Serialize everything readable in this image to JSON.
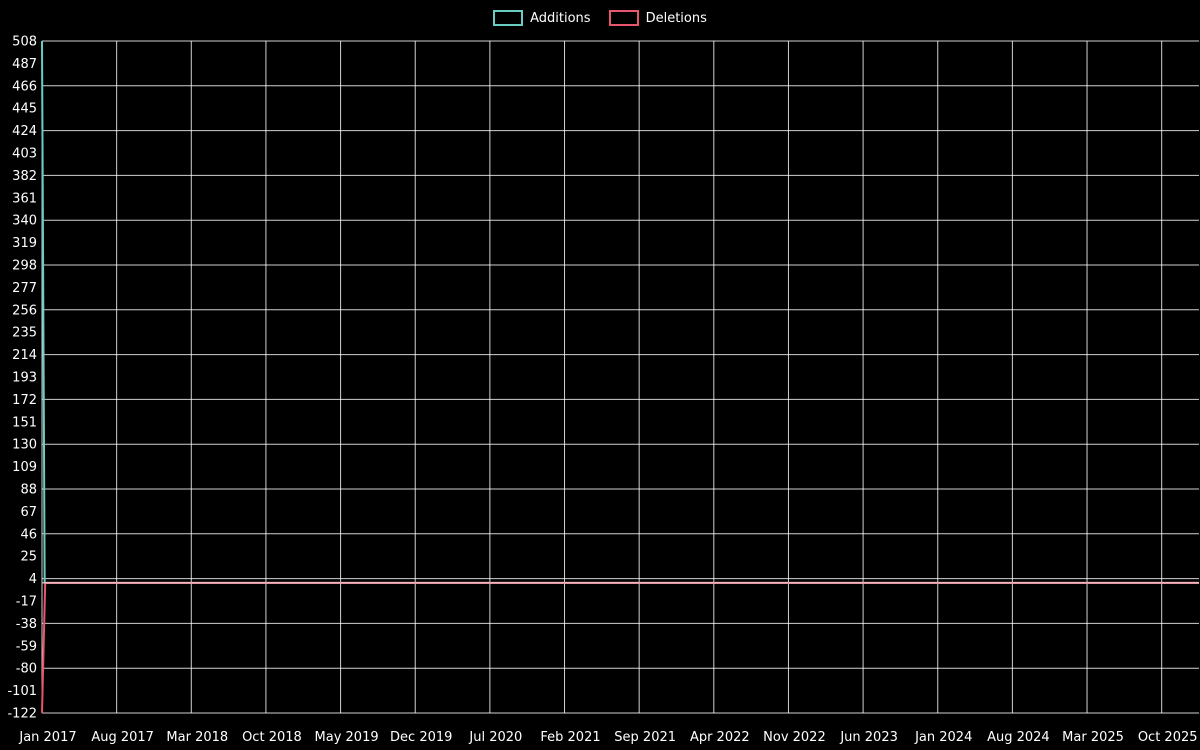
{
  "chart_data": {
    "type": "line",
    "title": "",
    "legend_position": "top-center",
    "background_color": "#000000",
    "grid": true,
    "grid_color": "#ffffff",
    "text_color": "#ffffff",
    "zero_axis_color": "#ffffff",
    "x_axis": {
      "start": "Jan 2017",
      "end": "Oct 2025",
      "tick_interval_months": 7,
      "tick_labels": [
        "Jan 2017",
        "Aug 2017",
        "Mar 2018",
        "Oct 2018",
        "May 2019",
        "Dec 2019",
        "Jul 2020",
        "Feb 2021",
        "Sep 2021",
        "Apr 2022",
        "Nov 2022",
        "Jun 2023",
        "Jan 2024",
        "Aug 2024",
        "Mar 2025",
        "Oct 2025"
      ]
    },
    "y_axis": {
      "min": -122,
      "max": 508,
      "tick_step": 21,
      "gridline_step": 42,
      "zero_line": 0,
      "tick_labels": [
        508,
        487,
        466,
        445,
        424,
        403,
        382,
        361,
        340,
        319,
        298,
        277,
        256,
        235,
        214,
        193,
        172,
        151,
        130,
        109,
        88,
        67,
        46,
        25,
        4,
        -17,
        -38,
        -59,
        -80,
        -101,
        -122
      ]
    },
    "series": [
      {
        "name": "Additions",
        "color": "#6bcdc2",
        "points": [
          {
            "x_months": 0,
            "y": 508
          },
          {
            "x_months": 0.25,
            "y": 0
          },
          {
            "x_months": 108.5,
            "y": 0
          }
        ]
      },
      {
        "name": "Deletions",
        "color": "#e8556d",
        "points": [
          {
            "x_months": 0,
            "y": -122
          },
          {
            "x_months": 0.3,
            "y": 0
          },
          {
            "x_months": 108.5,
            "y": 0
          }
        ]
      }
    ]
  },
  "legend": {
    "items": [
      {
        "label": "Additions",
        "color": "#6bcdc2"
      },
      {
        "label": "Deletions",
        "color": "#e8556d"
      }
    ]
  }
}
